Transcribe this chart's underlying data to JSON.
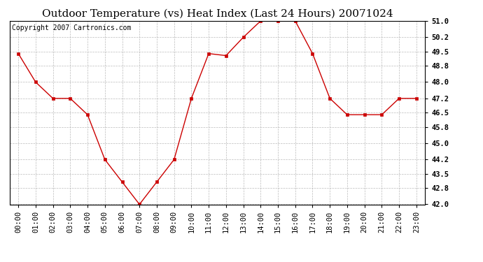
{
  "title": "Outdoor Temperature (vs) Heat Index (Last 24 Hours) 20071024",
  "copyright": "Copyright 2007 Cartronics.com",
  "x_labels": [
    "00:00",
    "01:00",
    "02:00",
    "03:00",
    "04:00",
    "05:00",
    "06:00",
    "07:00",
    "08:00",
    "09:00",
    "10:00",
    "11:00",
    "12:00",
    "13:00",
    "14:00",
    "15:00",
    "16:00",
    "17:00",
    "18:00",
    "19:00",
    "20:00",
    "21:00",
    "22:00",
    "23:00"
  ],
  "y_values": [
    49.4,
    48.0,
    47.2,
    47.2,
    46.4,
    44.2,
    43.1,
    42.0,
    43.1,
    44.2,
    47.2,
    49.4,
    49.3,
    50.2,
    51.0,
    51.0,
    51.0,
    49.4,
    47.2,
    46.4,
    46.4,
    46.4,
    47.2,
    47.2
  ],
  "line_color": "#cc0000",
  "marker_color": "#cc0000",
  "marker_face": "#cc0000",
  "bg_color": "#ffffff",
  "grid_color": "#aaaaaa",
  "ylim_min": 42.0,
  "ylim_max": 51.0,
  "yticks": [
    42.0,
    42.8,
    43.5,
    44.2,
    45.0,
    45.8,
    46.5,
    47.2,
    48.0,
    48.8,
    49.5,
    50.2,
    51.0
  ],
  "title_fontsize": 11,
  "copyright_fontsize": 7,
  "tick_fontsize": 7.5,
  "marker_size": 3
}
